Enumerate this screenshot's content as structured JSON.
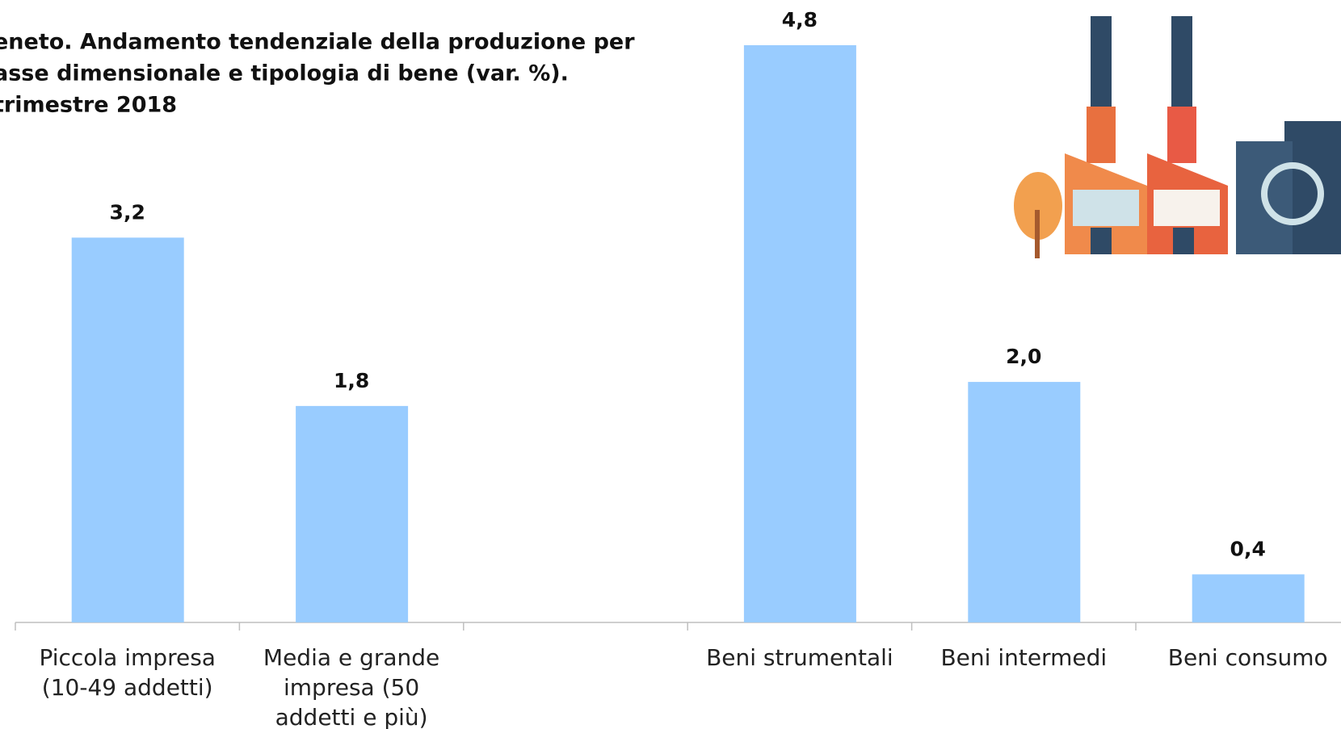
{
  "chart_data": {
    "type": "bar",
    "title": [
      "eneto. Andamento tendenziale della produzione per",
      "asse dimensionale e tipologia di bene (var. %).",
      "trimestre 2018"
    ],
    "categories": [
      "Piccola impresa (10-49 addetti)",
      "Media e grande impresa (50 addetti e più)",
      null,
      "Beni strumentali",
      "Beni intermedi",
      "Beni consumo"
    ],
    "values": [
      3.2,
      1.8,
      null,
      4.8,
      2.0,
      0.4
    ],
    "value_labels": [
      "3,2",
      "1,8",
      null,
      "4,8",
      "2,0",
      "0,4"
    ],
    "color": "#99ccff"
  }
}
